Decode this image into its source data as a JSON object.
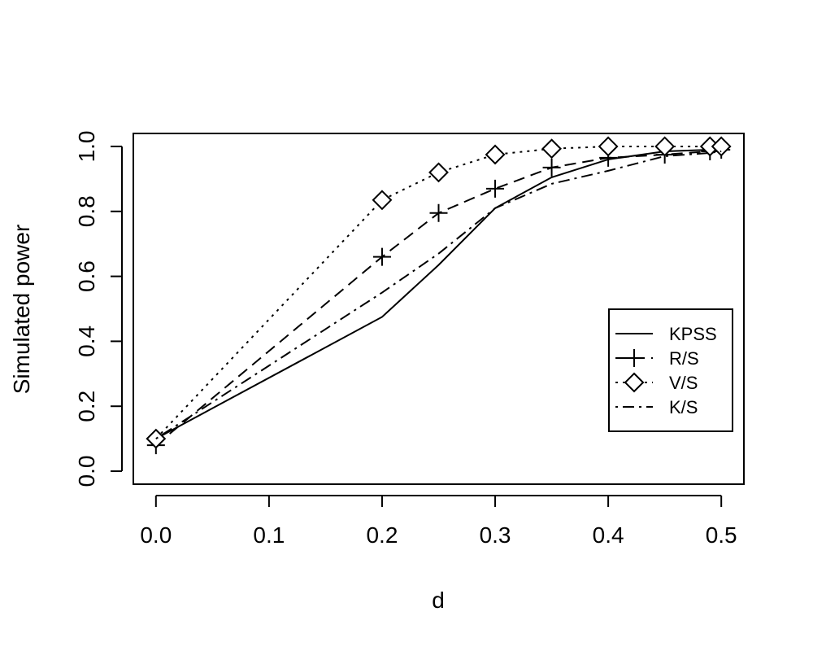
{
  "chart_data": {
    "type": "line",
    "title": "",
    "xlabel": "d",
    "ylabel": "Simulated power",
    "xlim": [
      -0.02,
      0.52
    ],
    "ylim": [
      -0.04,
      1.04
    ],
    "xticks": [
      0.0,
      0.1,
      0.2,
      0.3,
      0.4,
      0.5
    ],
    "xtick_labels": [
      "0.0",
      "0.1",
      "0.2",
      "0.3",
      "0.4",
      "0.5"
    ],
    "yticks": [
      0.0,
      0.2,
      0.4,
      0.6,
      0.8,
      1.0
    ],
    "ytick_labels": [
      "0.0",
      "0.2",
      "0.4",
      "0.6",
      "0.8",
      "1.0"
    ],
    "grid": false,
    "legend_position": "bottom-right",
    "series": [
      {
        "name": "KPSS",
        "linestyle": "solid",
        "marker": "none",
        "x": [
          0.0,
          0.2,
          0.25,
          0.3,
          0.35,
          0.4,
          0.45,
          0.49,
          0.5
        ],
        "y": [
          0.1,
          0.475,
          0.635,
          0.81,
          0.905,
          0.96,
          0.985,
          0.99,
          0.995
        ]
      },
      {
        "name": "R/S",
        "linestyle": "dashed",
        "marker": "plus",
        "x": [
          0.0,
          0.2,
          0.25,
          0.3,
          0.35,
          0.4,
          0.45,
          0.49,
          0.5
        ],
        "y": [
          0.08,
          0.66,
          0.795,
          0.87,
          0.935,
          0.965,
          0.975,
          0.985,
          0.99
        ]
      },
      {
        "name": "V/S",
        "linestyle": "dotted",
        "marker": "diamond",
        "x": [
          0.0,
          0.2,
          0.25,
          0.3,
          0.35,
          0.4,
          0.45,
          0.49,
          0.5
        ],
        "y": [
          0.1,
          0.835,
          0.92,
          0.975,
          0.993,
          1.0,
          1.0,
          1.0,
          1.0
        ]
      },
      {
        "name": "K/S",
        "linestyle": "dashdot",
        "marker": "none",
        "x": [
          0.0,
          0.2,
          0.25,
          0.3,
          0.35,
          0.4,
          0.45,
          0.49,
          0.5
        ],
        "y": [
          0.1,
          0.55,
          0.67,
          0.81,
          0.885,
          0.925,
          0.97,
          0.98,
          0.985
        ]
      }
    ]
  }
}
